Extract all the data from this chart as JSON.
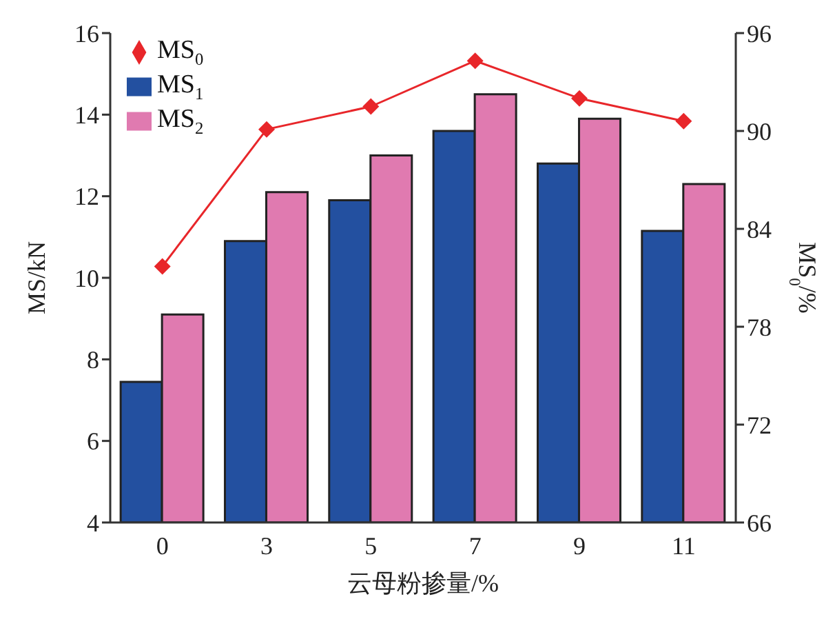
{
  "chart_data": {
    "type": "bar",
    "xlabel": "云母粉掺量/%",
    "ylabel": "MS/kN",
    "y2label": "MS$_{0}$/%",
    "categories": [
      "0",
      "3",
      "5",
      "7",
      "9",
      "11"
    ],
    "series": [
      {
        "name": "MS$_{0}$",
        "type": "line",
        "axis": "y2",
        "color": "#e8262a",
        "marker": "diamond",
        "values": [
          81.7,
          90.1,
          91.5,
          94.3,
          92.0,
          90.6
        ]
      },
      {
        "name": "MS$_{1}$",
        "color": "#2350a0",
        "values": [
          7.45,
          10.9,
          11.9,
          13.6,
          12.8,
          11.15
        ]
      },
      {
        "name": "MS$_{2}$",
        "color": "#e07ab0",
        "values": [
          9.1,
          12.1,
          13.0,
          14.5,
          13.9,
          12.3
        ]
      }
    ],
    "ylim": [
      4,
      16
    ],
    "yticks": [
      4,
      6,
      8,
      10,
      12,
      14,
      16
    ],
    "y2lim": [
      66,
      96
    ],
    "y2ticks": [
      66,
      72,
      78,
      84,
      90,
      96
    ],
    "legend": "top left",
    "grid": false
  }
}
